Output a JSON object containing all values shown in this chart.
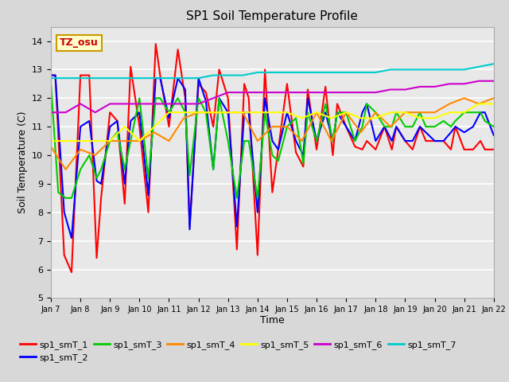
{
  "title": "SP1 Soil Temperature Profile",
  "xlabel": "Time",
  "ylabel": "Soil Temperature (C)",
  "ylim": [
    5.0,
    14.5
  ],
  "annotation_text": "TZ_osu",
  "annotation_bg": "#ffffcc",
  "annotation_border": "#cc9900",
  "fig_bg": "#d8d8d8",
  "plot_bg": "#e8e8e8",
  "x_tick_labels": [
    "Jan 7",
    "Jan 8",
    "Jan 9",
    "Jan 10",
    "Jan 11",
    "Jan 12",
    "Jan 13",
    "Jan 14",
    "Jan 15",
    "Jan 16",
    "Jan 17",
    "Jan 18",
    "Jan 19",
    "Jan 20",
    "Jan 21",
    "Jan 22"
  ],
  "series": {
    "sp1_smT_1": {
      "color": "#ff0000",
      "lw": 1.5,
      "x": [
        0,
        0.15,
        0.45,
        0.7,
        1.0,
        1.3,
        1.55,
        1.7,
        2.0,
        2.25,
        2.5,
        2.7,
        3.0,
        3.3,
        3.55,
        3.7,
        4.0,
        4.3,
        4.55,
        4.7,
        5.0,
        5.25,
        5.5,
        5.7,
        6.0,
        6.3,
        6.55,
        6.7,
        7.0,
        7.25,
        7.5,
        7.7,
        8.0,
        8.3,
        8.55,
        8.7,
        9.0,
        9.3,
        9.55,
        9.7,
        10.0,
        10.3,
        10.55,
        10.7,
        11.0,
        11.3,
        11.55,
        11.7,
        12.0,
        12.25,
        12.5,
        12.7,
        13.0,
        13.3,
        13.55,
        13.7,
        14.0,
        14.3,
        14.55,
        14.7,
        15.0
      ],
      "y": [
        12.8,
        12.8,
        6.5,
        5.9,
        12.8,
        12.8,
        6.4,
        8.5,
        11.5,
        11.2,
        8.3,
        13.1,
        11.0,
        8.0,
        13.9,
        12.8,
        11.0,
        13.7,
        12.0,
        7.5,
        12.5,
        12.2,
        11.0,
        13.0,
        12.0,
        6.7,
        12.5,
        12.0,
        6.5,
        13.0,
        8.7,
        10.2,
        12.5,
        10.1,
        9.6,
        12.3,
        10.2,
        12.4,
        10.0,
        11.8,
        11.0,
        10.3,
        10.2,
        10.5,
        10.2,
        11.0,
        10.2,
        11.0,
        10.5,
        10.2,
        11.0,
        10.5,
        10.5,
        10.5,
        10.2,
        11.0,
        10.2,
        10.2,
        10.5,
        10.2,
        10.2
      ]
    },
    "sp1_smT_2": {
      "color": "#0000ff",
      "lw": 1.5,
      "x": [
        0,
        0.15,
        0.45,
        0.7,
        1.0,
        1.3,
        1.55,
        1.7,
        2.0,
        2.25,
        2.5,
        2.7,
        3.0,
        3.3,
        3.55,
        3.7,
        4.0,
        4.3,
        4.55,
        4.7,
        5.0,
        5.25,
        5.5,
        5.7,
        6.0,
        6.3,
        6.55,
        6.7,
        7.0,
        7.25,
        7.5,
        7.7,
        8.0,
        8.3,
        8.55,
        8.7,
        9.0,
        9.3,
        9.55,
        9.7,
        10.0,
        10.3,
        10.55,
        10.7,
        11.0,
        11.3,
        11.55,
        11.7,
        12.0,
        12.25,
        12.5,
        12.7,
        13.0,
        13.3,
        13.55,
        13.7,
        14.0,
        14.3,
        14.55,
        14.7,
        15.0
      ],
      "y": [
        12.8,
        12.8,
        8.0,
        7.1,
        11.0,
        11.2,
        9.1,
        9.0,
        11.0,
        11.2,
        9.0,
        11.2,
        11.5,
        8.6,
        12.7,
        12.7,
        11.3,
        12.7,
        12.3,
        7.4,
        12.7,
        11.9,
        9.5,
        12.0,
        11.5,
        7.5,
        11.5,
        11.5,
        8.0,
        12.0,
        10.5,
        10.2,
        11.5,
        10.5,
        10.0,
        12.0,
        10.5,
        11.5,
        10.5,
        11.5,
        11.0,
        10.5,
        11.5,
        11.8,
        10.5,
        11.0,
        10.5,
        11.0,
        10.5,
        10.5,
        11.0,
        10.8,
        10.5,
        10.5,
        10.8,
        11.0,
        10.8,
        11.0,
        11.5,
        11.5,
        10.7
      ]
    },
    "sp1_smT_3": {
      "color": "#00cc00",
      "lw": 1.5,
      "x": [
        0,
        0.25,
        0.5,
        0.7,
        1.0,
        1.3,
        1.55,
        1.7,
        2.0,
        2.25,
        2.5,
        2.7,
        3.0,
        3.3,
        3.55,
        3.7,
        4.0,
        4.3,
        4.55,
        4.7,
        5.0,
        5.25,
        5.5,
        5.7,
        6.0,
        6.3,
        6.55,
        6.7,
        7.0,
        7.25,
        7.5,
        7.7,
        8.0,
        8.3,
        8.55,
        8.7,
        9.0,
        9.3,
        9.55,
        9.7,
        10.0,
        10.3,
        10.55,
        10.7,
        11.0,
        11.3,
        11.55,
        11.7,
        12.0,
        12.25,
        12.5,
        12.7,
        13.0,
        13.3,
        13.55,
        13.7,
        14.0,
        14.3,
        14.55,
        14.7,
        15.0
      ],
      "y": [
        12.5,
        8.7,
        8.5,
        8.5,
        9.5,
        10.0,
        9.2,
        9.5,
        10.5,
        10.8,
        9.5,
        10.5,
        12.0,
        9.2,
        12.0,
        12.0,
        11.5,
        12.0,
        11.5,
        9.3,
        12.0,
        11.5,
        9.5,
        12.0,
        10.5,
        8.5,
        10.5,
        10.5,
        8.5,
        11.5,
        10.0,
        9.8,
        11.0,
        11.3,
        9.7,
        11.5,
        10.5,
        11.8,
        10.5,
        11.5,
        11.5,
        10.5,
        11.0,
        11.8,
        11.5,
        11.0,
        11.0,
        11.5,
        11.0,
        11.0,
        11.5,
        11.0,
        11.0,
        11.2,
        11.0,
        11.2,
        11.5,
        11.5,
        11.5,
        11.2,
        11.0
      ]
    },
    "sp1_smT_4": {
      "color": "#ff8800",
      "lw": 1.5,
      "x": [
        0,
        0.5,
        1.0,
        1.5,
        2.0,
        2.5,
        3.0,
        3.5,
        4.0,
        4.5,
        5.0,
        5.5,
        6.0,
        6.5,
        7.0,
        7.5,
        8.0,
        8.5,
        9.0,
        9.5,
        10.0,
        10.5,
        11.0,
        11.5,
        12.0,
        12.5,
        13.0,
        13.5,
        14.0,
        14.5,
        15.0
      ],
      "y": [
        10.3,
        9.5,
        10.2,
        10.0,
        10.5,
        10.5,
        10.5,
        10.8,
        10.5,
        11.3,
        11.5,
        11.5,
        11.5,
        11.5,
        10.5,
        11.0,
        11.0,
        10.5,
        11.5,
        10.5,
        11.5,
        10.8,
        11.5,
        11.0,
        11.5,
        11.5,
        11.5,
        11.8,
        12.0,
        11.8,
        12.0
      ]
    },
    "sp1_smT_5": {
      "color": "#ffff00",
      "lw": 1.5,
      "x": [
        0,
        0.5,
        1.0,
        1.5,
        2.0,
        2.5,
        3.0,
        3.5,
        4.0,
        4.5,
        5.0,
        5.5,
        6.0,
        6.5,
        7.0,
        7.5,
        8.0,
        8.5,
        9.0,
        9.5,
        10.0,
        10.5,
        11.0,
        11.5,
        12.0,
        12.5,
        13.0,
        13.5,
        14.0,
        14.5,
        15.0
      ],
      "y": [
        10.5,
        10.5,
        10.5,
        10.5,
        10.5,
        11.0,
        10.5,
        11.0,
        11.5,
        11.5,
        11.5,
        11.5,
        11.5,
        11.5,
        11.5,
        11.5,
        11.5,
        11.3,
        11.5,
        11.3,
        11.5,
        11.3,
        11.3,
        11.5,
        11.5,
        11.3,
        11.3,
        11.5,
        11.5,
        11.8,
        11.8
      ]
    },
    "sp1_smT_6": {
      "color": "#cc00cc",
      "lw": 1.5,
      "x": [
        0,
        0.5,
        1.0,
        1.5,
        2.0,
        2.5,
        3.0,
        3.5,
        4.0,
        4.5,
        5.0,
        5.5,
        6.0,
        6.5,
        7.0,
        7.5,
        8.0,
        8.5,
        9.0,
        9.5,
        10.0,
        10.5,
        11.0,
        11.5,
        12.0,
        12.5,
        13.0,
        13.5,
        14.0,
        14.5,
        15.0
      ],
      "y": [
        11.5,
        11.5,
        11.8,
        11.5,
        11.8,
        11.8,
        11.8,
        11.8,
        11.8,
        11.8,
        11.8,
        12.0,
        12.2,
        12.2,
        12.2,
        12.2,
        12.2,
        12.2,
        12.2,
        12.2,
        12.2,
        12.2,
        12.2,
        12.3,
        12.3,
        12.4,
        12.4,
        12.5,
        12.5,
        12.6,
        12.6
      ]
    },
    "sp1_smT_7": {
      "color": "#00cccc",
      "lw": 1.5,
      "x": [
        0,
        0.5,
        1.0,
        1.5,
        2.0,
        2.5,
        3.0,
        3.5,
        4.0,
        4.5,
        5.0,
        5.5,
        6.0,
        6.5,
        7.0,
        7.5,
        8.0,
        8.5,
        9.0,
        9.5,
        10.0,
        10.5,
        11.0,
        11.5,
        12.0,
        12.5,
        13.0,
        13.5,
        14.0,
        14.5,
        15.0
      ],
      "y": [
        12.7,
        12.7,
        12.7,
        12.7,
        12.7,
        12.7,
        12.7,
        12.7,
        12.7,
        12.7,
        12.7,
        12.8,
        12.8,
        12.8,
        12.9,
        12.9,
        12.9,
        12.9,
        12.9,
        12.9,
        12.9,
        12.9,
        12.9,
        13.0,
        13.0,
        13.0,
        13.0,
        13.0,
        13.0,
        13.1,
        13.2
      ]
    }
  },
  "legend_order": [
    "sp1_smT_1",
    "sp1_smT_2",
    "sp1_smT_3",
    "sp1_smT_4",
    "sp1_smT_5",
    "sp1_smT_6",
    "sp1_smT_7"
  ]
}
